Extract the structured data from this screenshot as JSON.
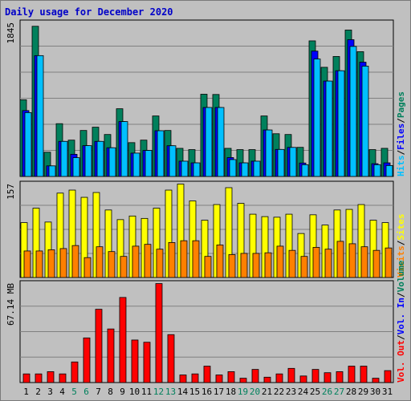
{
  "title": "Daily usage for December 2020",
  "colors": {
    "background": "#c0c0c0",
    "hits": "#00805c",
    "files": "#0000ff",
    "pages": "#00c0ff",
    "visits": "#ffff00",
    "sites": "#ff8000",
    "volume": "#ff0000",
    "weekend_day": "#00805c",
    "weekday": "#000000",
    "grid": "#808080"
  },
  "legend": {
    "top": [
      "Hits",
      "Files",
      "Pages"
    ],
    "middle": [
      "Visits",
      "Sites"
    ],
    "bottom": [
      "Vol. Out",
      "Vol. In",
      "Volume"
    ]
  },
  "chart_data": [
    {
      "type": "bar",
      "name": "hits-files-pages",
      "scale_label": "1845",
      "ylim": [
        0,
        1845
      ],
      "grid": true,
      "categories": [
        "1",
        "2",
        "3",
        "4",
        "5",
        "6",
        "7",
        "8",
        "9",
        "10",
        "11",
        "12",
        "13",
        "14",
        "15",
        "16",
        "17",
        "18",
        "19",
        "20",
        "21",
        "22",
        "23",
        "24",
        "25",
        "26",
        "27",
        "28",
        "29",
        "30",
        "31"
      ],
      "series": [
        {
          "name": "Hits",
          "values": [
            914,
            1790,
            289,
            629,
            433,
            548,
            587,
            500,
            807,
            403,
            433,
            721,
            548,
            335,
            320,
            980,
            977,
            335,
            320,
            320,
            721,
            509,
            500,
            347,
            1616,
            1301,
            1430,
            1745,
            1487,
            320,
            335
          ]
        },
        {
          "name": "Files",
          "values": [
            785,
            1440,
            126,
            418,
            264,
            367,
            418,
            342,
            654,
            278,
            310,
            545,
            366,
            182,
            162,
            822,
            822,
            225,
            162,
            182,
            554,
            322,
            346,
            160,
            1494,
            1137,
            1260,
            1630,
            1362,
            152,
            162
          ]
        },
        {
          "name": "Pages",
          "values": [
            761,
            1440,
            126,
            418,
            224,
            367,
            418,
            342,
            654,
            278,
            310,
            545,
            366,
            182,
            162,
            822,
            822,
            201,
            162,
            182,
            554,
            322,
            346,
            140,
            1400,
            1137,
            1260,
            1550,
            1315,
            140,
            130
          ]
        }
      ]
    },
    {
      "type": "bar",
      "name": "visits-sites",
      "scale_label": "157",
      "ylim": [
        0,
        157
      ],
      "grid": true,
      "categories": [
        "1",
        "2",
        "3",
        "4",
        "5",
        "6",
        "7",
        "8",
        "9",
        "10",
        "11",
        "12",
        "13",
        "14",
        "15",
        "16",
        "17",
        "18",
        "19",
        "20",
        "21",
        "22",
        "23",
        "24",
        "25",
        "26",
        "27",
        "28",
        "29",
        "30",
        "31"
      ],
      "series": [
        {
          "name": "Visits",
          "values": [
            91,
            115,
            92,
            140,
            145,
            133,
            141,
            112,
            96,
            102,
            98,
            115,
            145,
            155,
            127,
            95,
            121,
            149,
            123,
            105,
            101,
            100,
            105,
            73,
            104,
            87,
            112,
            113,
            121,
            95,
            91
          ]
        },
        {
          "name": "Sites",
          "values": [
            44,
            44,
            46,
            48,
            53,
            33,
            51,
            43,
            35,
            52,
            55,
            47,
            58,
            61,
            61,
            35,
            54,
            38,
            40,
            40,
            41,
            52,
            45,
            35,
            50,
            47,
            60,
            56,
            51,
            45,
            49
          ]
        }
      ]
    },
    {
      "type": "bar",
      "name": "volume",
      "scale_label": "67.14 MB",
      "ylim": [
        0,
        67.14
      ],
      "grid": true,
      "categories": [
        "1",
        "2",
        "3",
        "4",
        "5",
        "6",
        "7",
        "8",
        "9",
        "10",
        "11",
        "12",
        "13",
        "14",
        "15",
        "16",
        "17",
        "18",
        "19",
        "20",
        "21",
        "22",
        "23",
        "24",
        "25",
        "26",
        "27",
        "28",
        "29",
        "30",
        "31"
      ],
      "series": [
        {
          "name": "Volume",
          "values": [
            5.8,
            5.8,
            7.3,
            5.8,
            13.8,
            29.9,
            49.1,
            35.9,
            57.0,
            28.5,
            27.0,
            66.3,
            32.1,
            5.1,
            5.8,
            11.0,
            5.1,
            7.3,
            2.9,
            8.8,
            3.6,
            5.8,
            9.5,
            4.4,
            8.8,
            6.6,
            7.3,
            11.0,
            11.0,
            2.9,
            8.0
          ]
        }
      ]
    }
  ]
}
